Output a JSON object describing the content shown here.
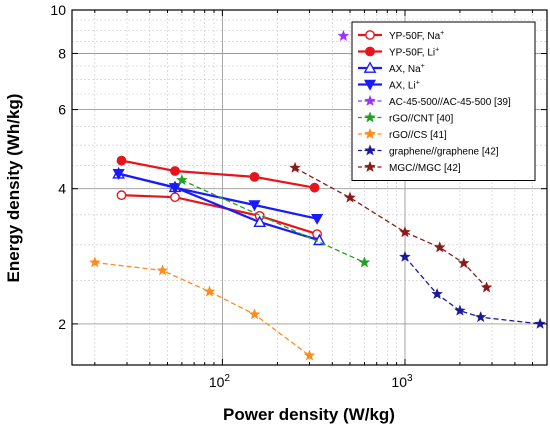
{
  "chart_data": {
    "type": "line",
    "title": "",
    "xlabel": "Power density (W/kg)",
    "ylabel": "Energy density (Wh/kg)",
    "xscale": "log",
    "yscale": "log",
    "xlim": [
      15,
      6000
    ],
    "ylim": [
      1.62,
      10
    ],
    "grid": true,
    "legend_position": "top-right",
    "x_ticks": [
      {
        "value": 100,
        "base": "10",
        "exp": "2"
      },
      {
        "value": 1000,
        "base": "10",
        "exp": "3"
      }
    ],
    "y_ticks": [
      {
        "value": 2,
        "label": "2"
      },
      {
        "value": 4,
        "label": "4"
      },
      {
        "value": 6,
        "label": "6"
      },
      {
        "value": 8,
        "label": "8"
      },
      {
        "value": 10,
        "label": "10"
      }
    ],
    "series": [
      {
        "name": "YP-50F, Na",
        "sup": "+",
        "color": "#e8141b",
        "marker": "circle-open",
        "dash": "solid",
        "x": [
          28,
          55,
          160,
          330
        ],
        "y": [
          3.87,
          3.83,
          3.48,
          3.17
        ]
      },
      {
        "name": "YP-50F, Li",
        "sup": "+",
        "color": "#e8141b",
        "marker": "circle",
        "dash": "solid",
        "x": [
          28,
          55,
          150,
          320
        ],
        "y": [
          4.62,
          4.38,
          4.25,
          4.02
        ]
      },
      {
        "name": "AX, Na",
        "sup": "+",
        "color": "#1a1aff",
        "marker": "triangle-up-open",
        "dash": "solid",
        "x": [
          27,
          55,
          160,
          340
        ],
        "y": [
          4.32,
          4.03,
          3.37,
          3.07
        ]
      },
      {
        "name": "AX, Li",
        "sup": "+",
        "color": "#1a1aff",
        "marker": "triangle-down",
        "dash": "solid",
        "x": [
          27,
          55,
          150,
          330
        ],
        "y": [
          4.32,
          4.02,
          3.68,
          3.43
        ]
      },
      {
        "name": "AC-45-500//AC-45-500 [39]",
        "color": "#9933ff",
        "marker": "star",
        "dash": "dashed",
        "x": [
          460
        ],
        "y": [
          8.75
        ]
      },
      {
        "name": "rGO//CNT [40]",
        "color": "#22a022",
        "marker": "star",
        "dash": "dashed",
        "x": [
          60,
          600
        ],
        "y": [
          4.18,
          2.74
        ]
      },
      {
        "name": "rGO//CS [41]",
        "color": "#ff8c1a",
        "marker": "star",
        "dash": "dashed",
        "x": [
          20,
          47,
          85,
          150,
          300
        ],
        "y": [
          2.74,
          2.63,
          2.36,
          2.1,
          1.7
        ]
      },
      {
        "name": "graphene//graphene [42]",
        "color": "#1a1a99",
        "marker": "star",
        "dash": "dashed",
        "x": [
          1000,
          1500,
          2000,
          2600,
          5500
        ],
        "y": [
          2.82,
          2.33,
          2.14,
          2.07,
          2.0
        ]
      },
      {
        "name": "MGC//MGC [42]",
        "color": "#8b1a1a",
        "marker": "star",
        "dash": "dashed",
        "x": [
          250,
          500,
          1000,
          1550,
          2100,
          2800
        ],
        "y": [
          4.45,
          3.82,
          3.2,
          2.96,
          2.73,
          2.41
        ]
      }
    ]
  }
}
